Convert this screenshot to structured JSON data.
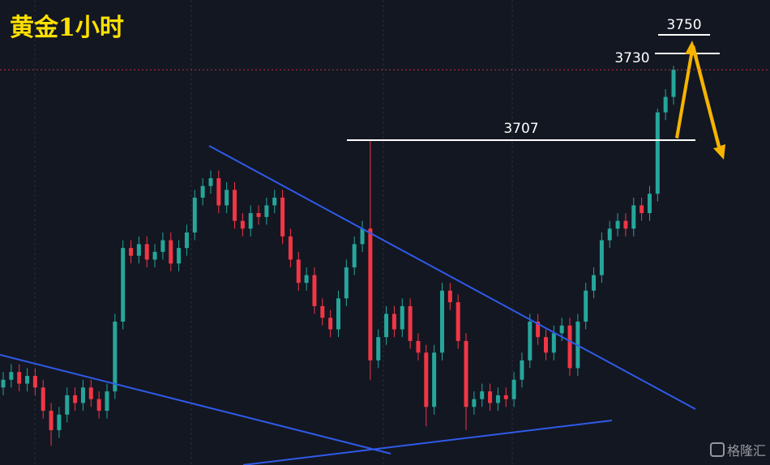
{
  "chart_data": {
    "type": "candlestick",
    "title": "黄金1小时",
    "ylim": [
      3623,
      3743
    ],
    "up_color": "#26a69a",
    "down_color": "#f23645",
    "last_price_line": 3725,
    "levels": [
      3707,
      3730,
      3750
    ],
    "watermark": "格隆汇",
    "open": [
      3643,
      3645,
      3647,
      3644,
      3646,
      3643,
      3637,
      3632,
      3636,
      3641,
      3639,
      3643,
      3640,
      3637,
      3642,
      3660,
      3679,
      3677,
      3680,
      3676,
      3678,
      3681,
      3675,
      3679,
      3683,
      3692,
      3695,
      3697,
      3690,
      3694,
      3686,
      3684,
      3688,
      3687,
      3690,
      3692,
      3682,
      3676,
      3670,
      3672,
      3664,
      3661,
      3658,
      3666,
      3674,
      3680,
      3684,
      3650,
      3656,
      3662,
      3658,
      3664,
      3655,
      3652,
      3638,
      3652,
      3668,
      3665,
      3655,
      3638,
      3640,
      3642,
      3639,
      3641,
      3640,
      3645,
      3650,
      3660,
      3656,
      3652,
      3657,
      3659,
      3648,
      3660,
      3668,
      3672,
      3681,
      3684,
      3686,
      3684,
      3690,
      3688,
      3693,
      3714,
      3718
    ],
    "high": [
      3647,
      3649,
      3649,
      3648,
      3648,
      3645,
      3639,
      3638,
      3643,
      3643,
      3645,
      3645,
      3642,
      3644,
      3662,
      3681,
      3681,
      3682,
      3682,
      3680,
      3683,
      3683,
      3681,
      3685,
      3694,
      3697,
      3699,
      3699,
      3696,
      3696,
      3688,
      3690,
      3690,
      3692,
      3694,
      3694,
      3684,
      3678,
      3674,
      3674,
      3666,
      3663,
      3668,
      3676,
      3682,
      3686,
      3707,
      3658,
      3664,
      3664,
      3666,
      3666,
      3657,
      3654,
      3654,
      3670,
      3670,
      3667,
      3657,
      3642,
      3644,
      3644,
      3643,
      3643,
      3647,
      3652,
      3662,
      3662,
      3658,
      3659,
      3661,
      3661,
      3662,
      3670,
      3674,
      3683,
      3686,
      3688,
      3688,
      3692,
      3692,
      3695,
      3715,
      3720,
      3726
    ],
    "low": [
      3641,
      3643,
      3642,
      3642,
      3641,
      3635,
      3628,
      3630,
      3634,
      3637,
      3637,
      3638,
      3635,
      3635,
      3640,
      3658,
      3675,
      3675,
      3674,
      3674,
      3676,
      3673,
      3673,
      3677,
      3681,
      3690,
      3693,
      3688,
      3688,
      3684,
      3682,
      3682,
      3685,
      3685,
      3688,
      3680,
      3674,
      3668,
      3668,
      3662,
      3659,
      3656,
      3656,
      3664,
      3672,
      3678,
      3645,
      3648,
      3654,
      3656,
      3656,
      3653,
      3650,
      3633,
      3636,
      3650,
      3663,
      3653,
      3632,
      3636,
      3638,
      3637,
      3637,
      3638,
      3638,
      3643,
      3648,
      3654,
      3650,
      3650,
      3655,
      3646,
      3646,
      3658,
      3666,
      3670,
      3679,
      3682,
      3682,
      3682,
      3686,
      3686,
      3691,
      3712,
      3716
    ],
    "close": [
      3645,
      3647,
      3644,
      3646,
      3643,
      3637,
      3632,
      3636,
      3641,
      3639,
      3643,
      3640,
      3637,
      3642,
      3660,
      3679,
      3677,
      3680,
      3676,
      3678,
      3681,
      3675,
      3679,
      3683,
      3692,
      3695,
      3697,
      3690,
      3694,
      3686,
      3684,
      3688,
      3687,
      3690,
      3692,
      3682,
      3676,
      3670,
      3672,
      3664,
      3661,
      3658,
      3666,
      3674,
      3680,
      3684,
      3650,
      3656,
      3662,
      3658,
      3664,
      3655,
      3652,
      3638,
      3652,
      3668,
      3665,
      3655,
      3638,
      3640,
      3642,
      3639,
      3641,
      3640,
      3645,
      3650,
      3660,
      3656,
      3652,
      3657,
      3659,
      3648,
      3660,
      3668,
      3672,
      3681,
      3684,
      3686,
      3684,
      3690,
      3688,
      3693,
      3714,
      3718,
      3725
    ]
  }
}
